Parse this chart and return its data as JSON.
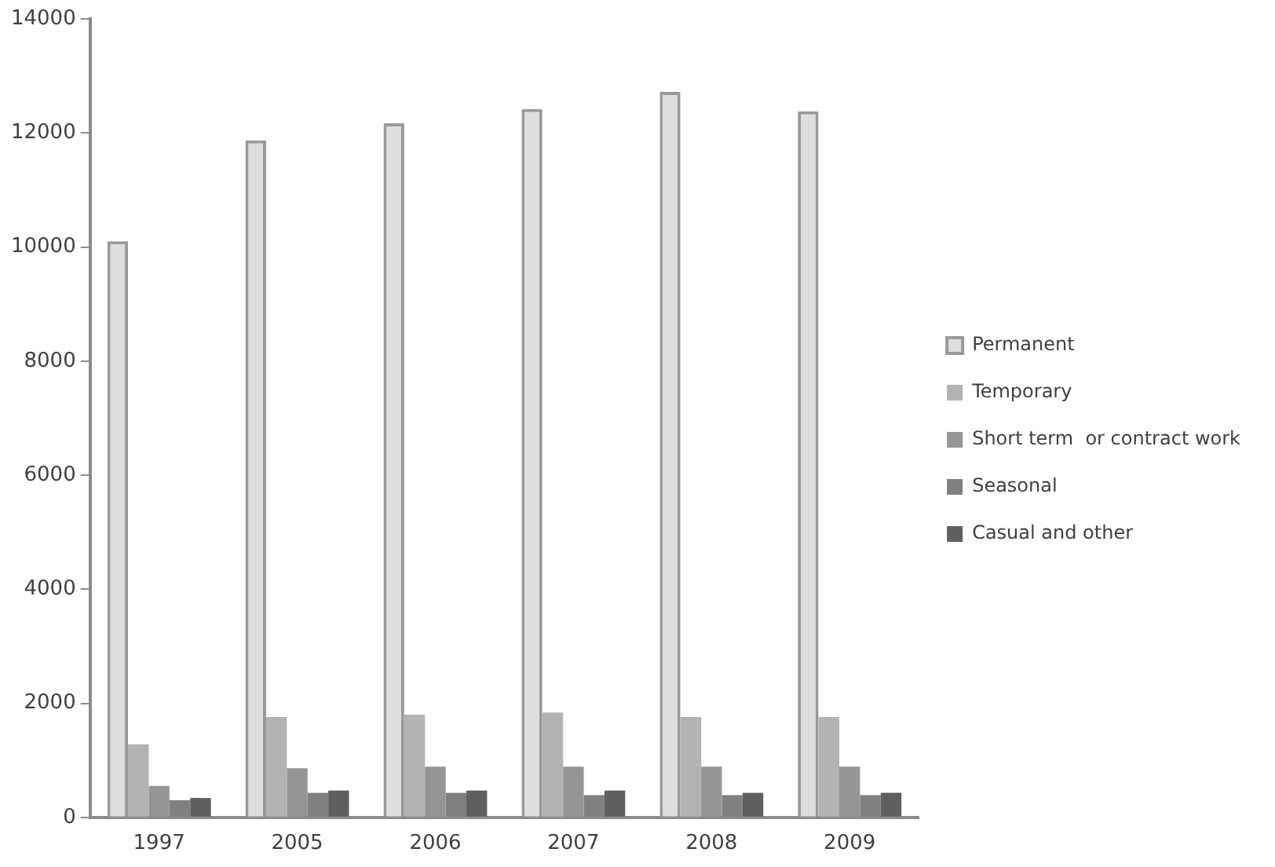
{
  "chart_data": {
    "type": "bar",
    "categories": [
      "1997",
      "2005",
      "2006",
      "2007",
      "2008",
      "2009"
    ],
    "series": [
      {
        "name": "Permanent",
        "color": "#dedede",
        "values": [
          10100,
          11870,
          12170,
          12420,
          12720,
          12380
        ]
      },
      {
        "name": "Temporary",
        "color": "#b3b3b3",
        "values": [
          1280,
          1760,
          1800,
          1840,
          1760,
          1760
        ]
      },
      {
        "name": "Short term  or contract work",
        "color": "#959595",
        "values": [
          550,
          860,
          890,
          890,
          890,
          890
        ]
      },
      {
        "name": "Seasonal",
        "color": "#808080",
        "values": [
          300,
          430,
          430,
          390,
          390,
          390
        ]
      },
      {
        "name": "Casual and other",
        "color": "#5f5f5f",
        "values": [
          340,
          470,
          470,
          470,
          430,
          430
        ]
      }
    ],
    "ylim": [
      0,
      14000
    ],
    "yticks": [
      0,
      2000,
      4000,
      6000,
      8000,
      10000,
      12000,
      14000
    ],
    "grid": false,
    "legend": "right"
  }
}
